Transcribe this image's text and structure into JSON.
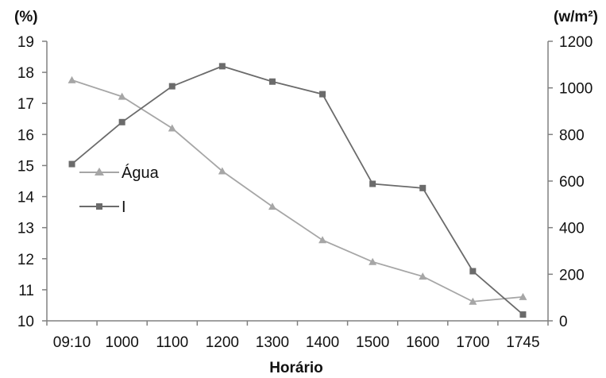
{
  "chart_data": {
    "type": "line",
    "categories": [
      "09:10",
      "1000",
      "1100",
      "1200",
      "1300",
      "1400",
      "1500",
      "1600",
      "1700",
      "1745"
    ],
    "xlabel": "Horário",
    "y_left_label": "(%)",
    "y_right_label": "(w/m²)",
    "y_left_lim": [
      10,
      19
    ],
    "y_left_ticks": [
      10,
      11,
      12,
      13,
      14,
      15,
      16,
      17,
      18,
      19
    ],
    "y_right_lim": [
      0,
      1200
    ],
    "y_right_ticks": [
      0,
      200,
      400,
      600,
      800,
      1000,
      1200
    ],
    "grid": false,
    "legend_position": "left-middle",
    "series": [
      {
        "name": "Água",
        "axis": "left",
        "marker": "triangle",
        "color": "#a6a6a6",
        "values": [
          17.75,
          17.22,
          16.2,
          14.82,
          13.68,
          12.6,
          11.9,
          11.43,
          10.62,
          10.77
        ]
      },
      {
        "name": "I",
        "axis": "right",
        "marker": "square",
        "color": "#6b6b6b",
        "values": [
          673,
          853,
          1007,
          1093,
          1027,
          973,
          588,
          570,
          213,
          27
        ]
      }
    ]
  }
}
